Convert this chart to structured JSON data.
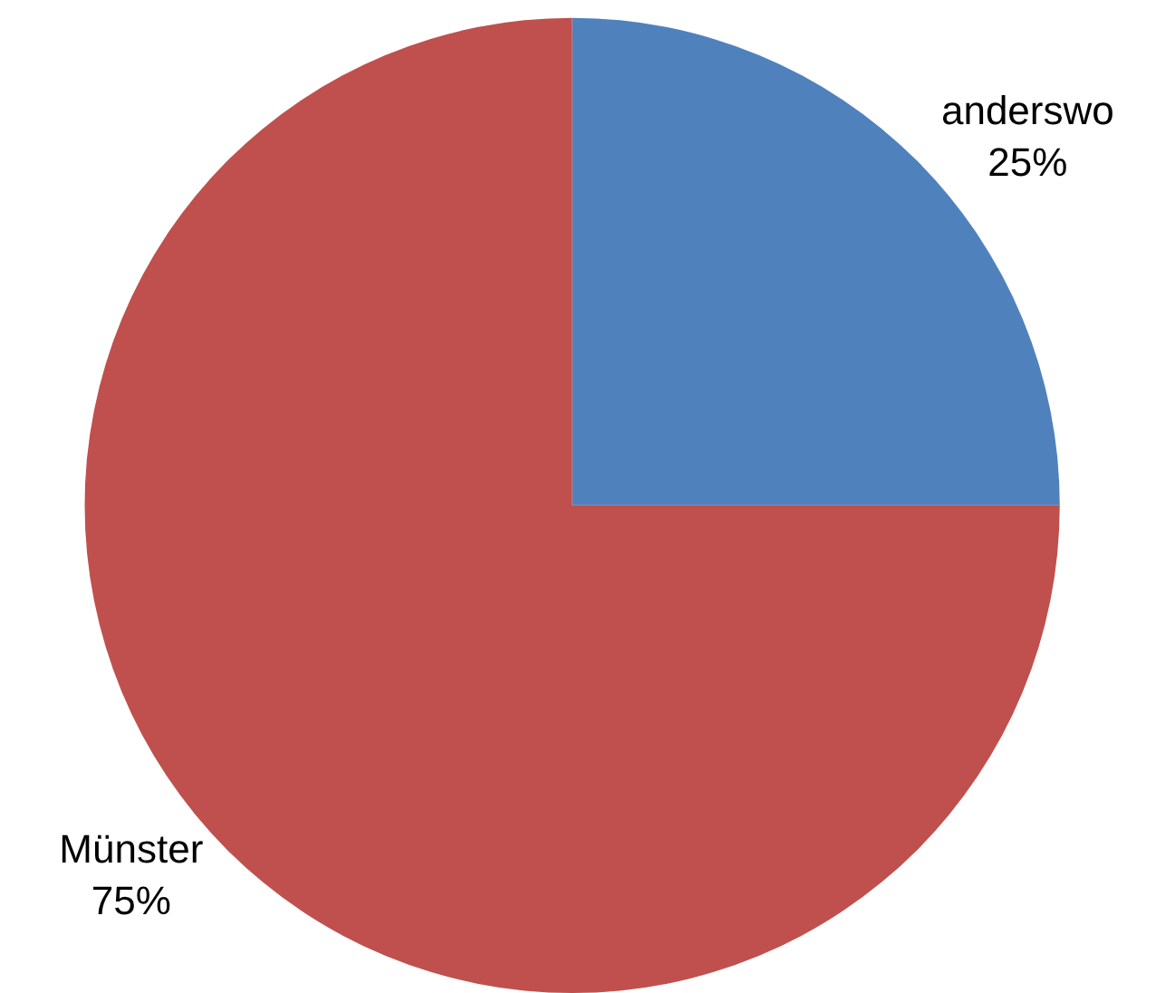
{
  "chart_data": {
    "type": "pie",
    "categories": [
      "anderswo",
      "Münster"
    ],
    "values": [
      25,
      75
    ],
    "colors": [
      "#4f81bd",
      "#c0504d"
    ],
    "value_labels": [
      "25%",
      "75%"
    ],
    "legend": false
  }
}
